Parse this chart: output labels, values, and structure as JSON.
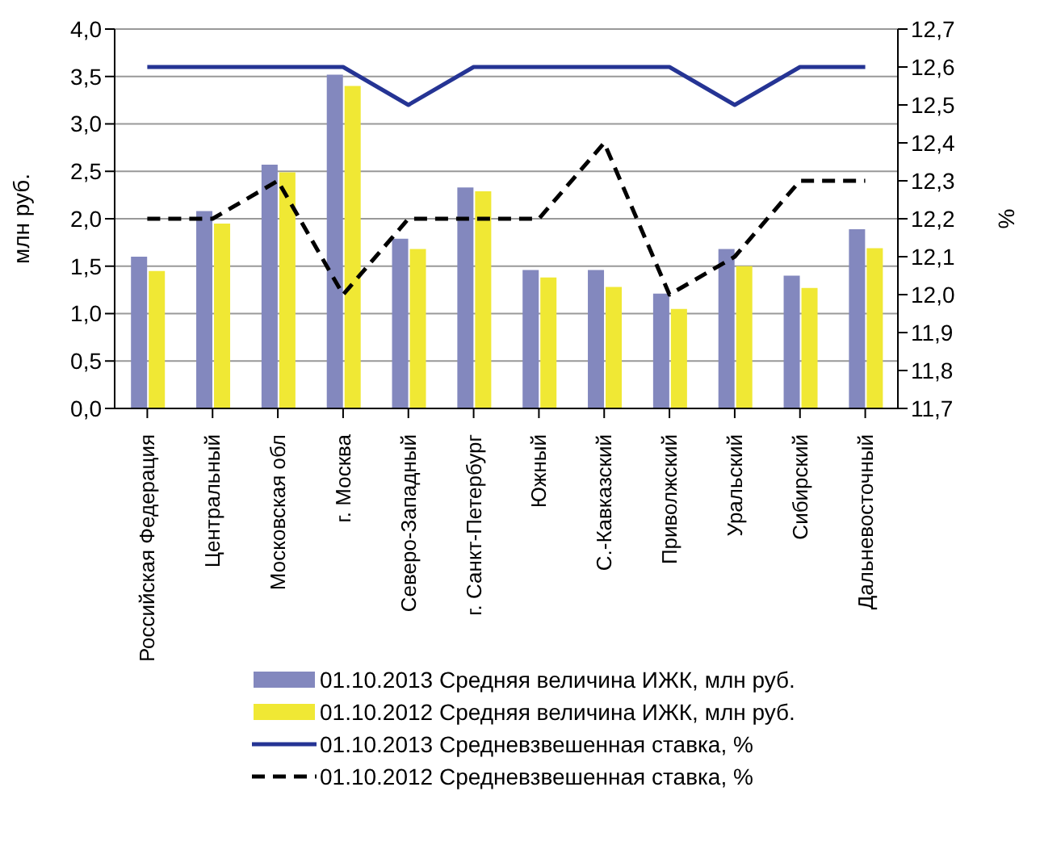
{
  "chart_data": {
    "type": "bar",
    "categories": [
      "Российская Федерация",
      "Центральный",
      "Московская обл",
      "г. Москва",
      "Северо-Западный",
      "г. Санкт-Петербург",
      "Южный",
      "С.-Кавказский",
      "Приволжский",
      "Уральский",
      "Сибирский",
      "Дальневосточный"
    ],
    "ylabel": "млн руб.",
    "y2label": "%",
    "series": [
      {
        "name": "01.10.2013 Средняя величина ИЖК, млн руб.",
        "color": "#8388be",
        "values": [
          1.6,
          2.08,
          2.57,
          3.52,
          1.79,
          2.33,
          1.46,
          1.46,
          1.21,
          1.68,
          1.4,
          1.89
        ]
      },
      {
        "name": "01.10.2012 Средняя величина ИЖК, млн руб.",
        "color": "#f0e834",
        "values": [
          1.45,
          1.95,
          2.49,
          3.4,
          1.68,
          2.29,
          1.38,
          1.28,
          1.05,
          1.5,
          1.27,
          1.69
        ]
      },
      {
        "name": "01.10.2013 Средневзвешенная ставка, %",
        "type": "line",
        "axis": "y2",
        "color": "#253494",
        "line_style": "solid",
        "values": [
          12.6,
          12.6,
          12.6,
          12.6,
          12.5,
          12.6,
          12.6,
          12.6,
          12.6,
          12.5,
          12.6,
          12.6
        ]
      },
      {
        "name": "01.10.2012 Средневзвешенная ставка, %",
        "type": "line",
        "axis": "y2",
        "color": "#000000",
        "line_style": "dashed",
        "values": [
          12.2,
          12.2,
          12.3,
          12.0,
          12.2,
          12.2,
          12.2,
          12.4,
          12.0,
          12.1,
          12.3,
          12.3
        ]
      }
    ],
    "ylim": [
      0,
      4
    ],
    "yticks": [
      {
        "value": 0,
        "label": "0,0"
      },
      {
        "value": 0.5,
        "label": "0,5"
      },
      {
        "value": 1,
        "label": "1,0"
      },
      {
        "value": 1.5,
        "label": "1,5"
      },
      {
        "value": 2,
        "label": "2,0"
      },
      {
        "value": 2.5,
        "label": "2,5"
      },
      {
        "value": 3,
        "label": "3,0"
      },
      {
        "value": 3.5,
        "label": "3,5"
      },
      {
        "value": 4,
        "label": "4,0"
      }
    ],
    "y2lim": [
      11.7,
      12.7
    ],
    "y2ticks": [
      {
        "value": 11.7,
        "label": "11,7"
      },
      {
        "value": 11.8,
        "label": "11,8"
      },
      {
        "value": 11.9,
        "label": "11,9"
      },
      {
        "value": 12,
        "label": "12,0"
      },
      {
        "value": 12.1,
        "label": "12,1"
      },
      {
        "value": 12.2,
        "label": "12,2"
      },
      {
        "value": 12.3,
        "label": "12,3"
      },
      {
        "value": 12.4,
        "label": "12,4"
      },
      {
        "value": 12.5,
        "label": "12,5"
      },
      {
        "value": 12.6,
        "label": "12,6"
      },
      {
        "value": 12.7,
        "label": "12,7"
      }
    ],
    "grid": "y",
    "legend": "bottom",
    "marker": "none"
  }
}
